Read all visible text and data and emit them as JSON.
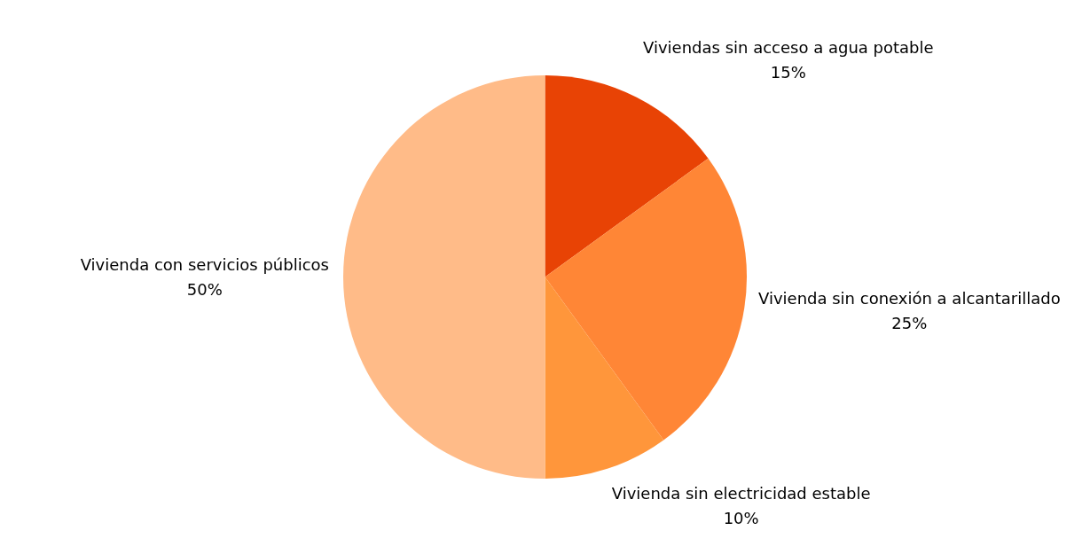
{
  "chart_data": {
    "type": "pie",
    "categories": [
      "Viviendas sin acceso a agua potable",
      "Vivienda sin conexión a alcantarillado",
      "Vivienda sin electricidad estable",
      "Vivienda con servicios públicos"
    ],
    "values": [
      15,
      25,
      10,
      50
    ],
    "value_labels": [
      "15%",
      "25%",
      "10%",
      "50%"
    ],
    "colors": [
      "#e84305",
      "#ff8636",
      "#ff963b",
      "#ffbb88"
    ],
    "legend": false
  }
}
